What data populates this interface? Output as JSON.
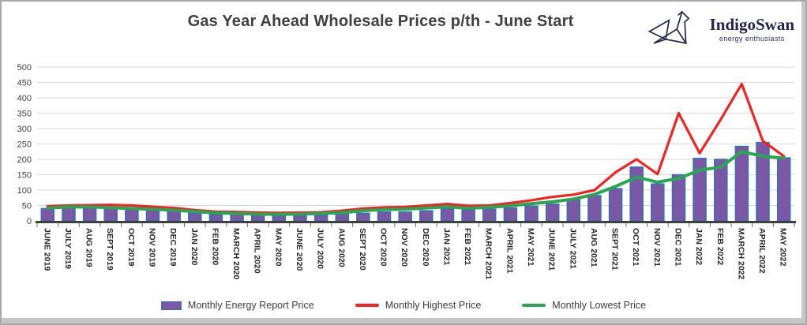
{
  "header": {
    "logo": {
      "name": "IndigoSwan",
      "tagline": "energy enthusiasts",
      "color": "#23254f"
    }
  },
  "chart_data": {
    "type": "bar",
    "title": "Gas Year Ahead Wholesale Prices p/th - June Start",
    "categories": [
      "JUNE 2019",
      "JULY 2019",
      "AUG 2019",
      "SEPT 2019",
      "OCT 2019",
      "NOV 2019",
      "DEC 2019",
      "JAN 2020",
      "FEB 2020",
      "MARCH 2020",
      "APRIL 2020",
      "MAY 2020",
      "JUNE 2020",
      "JULY 2020",
      "AUG 2020",
      "SEPT 2020",
      "OCT 2020",
      "NOV 2020",
      "DEC 2020",
      "JAN 2021",
      "FEB 2021",
      "MARCH 2021",
      "APRIL 2021",
      "MAY 2021",
      "JUNE 2021",
      "JULY 2021",
      "AUG 2021",
      "SEPT 2021",
      "OCT 2021",
      "NOV 2021",
      "DEC 2021",
      "JAN 2022",
      "FEB 2022",
      "MARCH 2022",
      "APRIL 2022",
      "MAY 2022"
    ],
    "series": [
      {
        "name": "Monthly Energy Report Price",
        "type": "bar",
        "color": "#7B57A5",
        "border_color": "#2E74B6",
        "values": [
          40,
          42,
          42,
          40,
          38,
          35,
          32,
          25,
          21,
          20,
          18,
          17,
          18,
          19,
          22,
          25,
          29,
          29,
          33,
          40,
          36,
          38,
          42,
          48,
          55,
          69,
          82,
          105,
          175,
          120,
          150,
          203,
          200,
          242,
          255,
          205
        ]
      },
      {
        "name": "Monthly Highest Price",
        "type": "line",
        "color": "#F52222",
        "values": [
          48,
          50,
          51,
          52,
          50,
          46,
          42,
          35,
          30,
          29,
          27,
          26,
          27,
          28,
          33,
          40,
          44,
          45,
          50,
          55,
          49,
          50,
          58,
          67,
          78,
          85,
          100,
          158,
          200,
          152,
          350,
          220,
          330,
          445,
          260,
          210
        ]
      },
      {
        "name": "Monthly Lowest Price",
        "type": "line",
        "color": "#28A652",
        "values": [
          42,
          45,
          45,
          43,
          40,
          38,
          35,
          30,
          26,
          24,
          22,
          21,
          22,
          24,
          27,
          33,
          37,
          38,
          42,
          46,
          41,
          44,
          49,
          56,
          62,
          71,
          86,
          112,
          142,
          126,
          138,
          165,
          175,
          225,
          210,
          204
        ]
      }
    ],
    "ylim": [
      0,
      500
    ],
    "ytick_step": 50,
    "grid": true,
    "grid_color": "#d9d9d9",
    "axis_color": "#3f3f3f",
    "legend_position": "bottom"
  }
}
